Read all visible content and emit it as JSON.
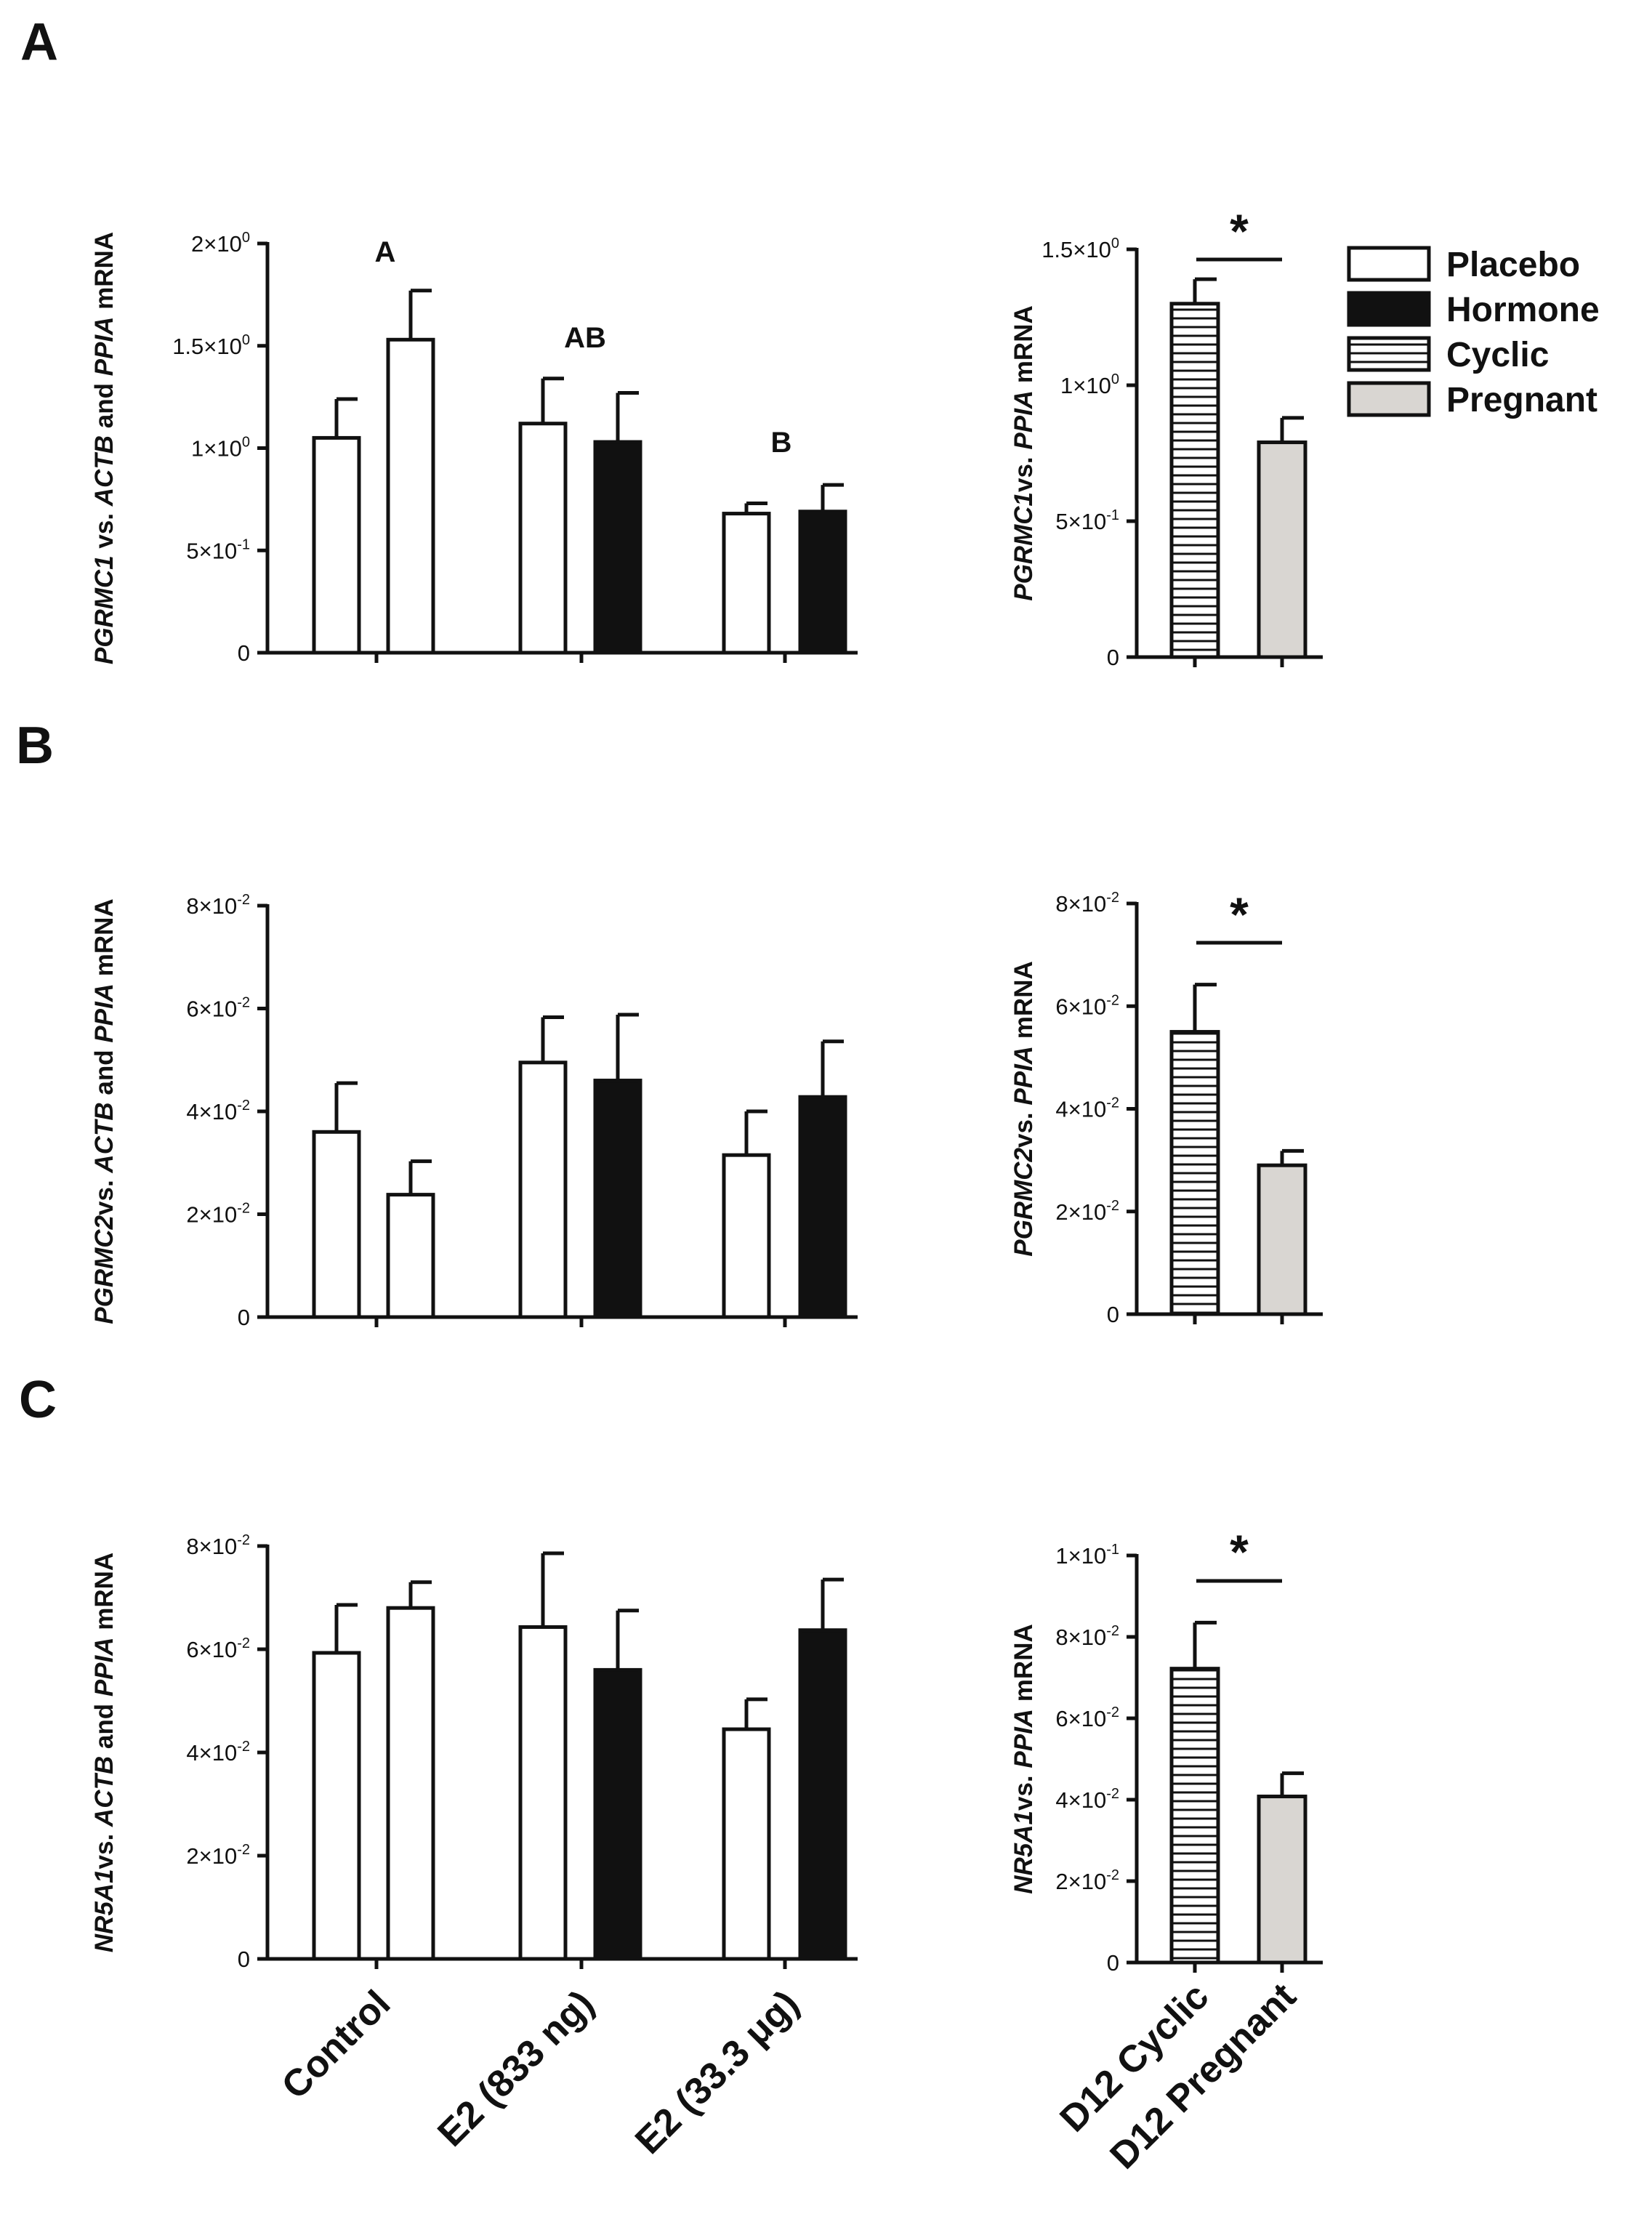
{
  "legend": [
    {
      "label": "Placebo",
      "fill": "#ffffff",
      "pattern": "none"
    },
    {
      "label": "Hormone",
      "fill": "#111111",
      "pattern": "none"
    },
    {
      "label": "Cyclic",
      "fill": "#ffffff",
      "pattern": "horizontal-lines"
    },
    {
      "label": "Pregnant",
      "fill": "#d9d6d2",
      "pattern": "none"
    }
  ],
  "colors": {
    "placebo": "#ffffff",
    "hormone": "#111111",
    "cyclic": "#ffffff",
    "pregnant": "#d9d6d2",
    "ink": "#111111"
  },
  "x_categories_left": [
    "Control",
    "E2 (833 ng)",
    "E2 (33.3 μg)"
  ],
  "x_categories_right": [
    "D12 Cyclic",
    "D12 Pregnant"
  ],
  "chart_data": [
    {
      "id": "A-left",
      "panel": "A",
      "type": "bar",
      "ylabel_parts": [
        [
          "PGRMC1",
          true
        ],
        [
          " vs. ",
          false
        ],
        [
          "ACTB",
          true
        ],
        [
          " and ",
          false
        ],
        [
          "PPIA",
          true
        ],
        [
          " mRNA",
          false
        ]
      ],
      "ylim": [
        0,
        2.0
      ],
      "yticks": [
        {
          "value": 0,
          "label": "0"
        },
        {
          "value": 0.5,
          "label": "5×10",
          "exp": "-1"
        },
        {
          "value": 1.0,
          "label": "1×10",
          "exp": "0"
        },
        {
          "value": 1.5,
          "label": "1.5×10",
          "exp": "0"
        },
        {
          "value": 2.0,
          "label": "2×10",
          "exp": "0"
        }
      ],
      "categories": [
        "Control",
        "E2 (833 ng)",
        "E2 (33.3 μg)"
      ],
      "series": [
        {
          "name": "Placebo",
          "values": [
            1.05,
            1.12,
            0.68
          ],
          "errors": [
            0.19,
            0.22,
            0.05
          ]
        },
        {
          "name": "Hormone",
          "values": [
            1.53,
            1.03,
            0.69
          ],
          "errors": [
            0.24,
            0.24,
            0.13
          ]
        }
      ],
      "control_colors": [
        "placebo",
        "placebo"
      ],
      "annotations": [
        "A",
        "AB",
        "B"
      ]
    },
    {
      "id": "A-right",
      "panel": "A",
      "type": "bar",
      "ylabel_parts": [
        [
          "PGRMC1",
          true
        ],
        [
          "vs. ",
          false
        ],
        [
          "PPIA",
          true
        ],
        [
          " mRNA",
          false
        ]
      ],
      "ylim": [
        0,
        1.5
      ],
      "yticks": [
        {
          "value": 0,
          "label": "0"
        },
        {
          "value": 0.5,
          "label": "5×10",
          "exp": "-1"
        },
        {
          "value": 1.0,
          "label": "1×10",
          "exp": "0"
        },
        {
          "value": 1.5,
          "label": "1.5×10",
          "exp": "0"
        }
      ],
      "categories": [
        "D12 Cyclic",
        "D12 Pregnant"
      ],
      "values": [
        1.3,
        0.79
      ],
      "errors": [
        0.09,
        0.09
      ],
      "significance": "*"
    },
    {
      "id": "B-left",
      "panel": "B",
      "type": "bar",
      "ylabel_parts": [
        [
          "PGRMC2",
          true
        ],
        [
          "vs. ",
          false
        ],
        [
          "ACTB",
          true
        ],
        [
          " and ",
          false
        ],
        [
          "PPIA",
          true
        ],
        [
          " mRNA",
          false
        ]
      ],
      "ylim": [
        0,
        0.08
      ],
      "yticks": [
        {
          "value": 0,
          "label": "0"
        },
        {
          "value": 0.02,
          "label": "2×10",
          "exp": "-2"
        },
        {
          "value": 0.04,
          "label": "4×10",
          "exp": "-2"
        },
        {
          "value": 0.06,
          "label": "6×10",
          "exp": "-2"
        },
        {
          "value": 0.08,
          "label": "8×10",
          "exp": "-2"
        }
      ],
      "categories": [
        "Control",
        "E2 (833 ng)",
        "E2 (33.3 μg)"
      ],
      "series": [
        {
          "name": "Placebo",
          "values": [
            0.036,
            0.0495,
            0.0315
          ],
          "errors": [
            0.0095,
            0.0088,
            0.0085
          ]
        },
        {
          "name": "Hormone",
          "values": [
            0.0238,
            0.046,
            0.0428
          ],
          "errors": [
            0.0065,
            0.0128,
            0.0108
          ]
        }
      ],
      "control_colors": [
        "placebo",
        "placebo"
      ]
    },
    {
      "id": "B-right",
      "panel": "B",
      "type": "bar",
      "ylabel_parts": [
        [
          "PGRMC2",
          true
        ],
        [
          "vs. ",
          false
        ],
        [
          "PPIA",
          true
        ],
        [
          " mRNA",
          false
        ]
      ],
      "ylim": [
        0,
        0.08
      ],
      "yticks": [
        {
          "value": 0,
          "label": "0"
        },
        {
          "value": 0.02,
          "label": "2×10",
          "exp": "-2"
        },
        {
          "value": 0.04,
          "label": "4×10",
          "exp": "-2"
        },
        {
          "value": 0.06,
          "label": "6×10",
          "exp": "-2"
        },
        {
          "value": 0.08,
          "label": "8×10",
          "exp": "-2"
        }
      ],
      "categories": [
        "D12 Cyclic",
        "D12 Pregnant"
      ],
      "values": [
        0.055,
        0.029
      ],
      "errors": [
        0.0092,
        0.0028
      ],
      "significance": "*"
    },
    {
      "id": "C-left",
      "panel": "C",
      "type": "bar",
      "ylabel_parts": [
        [
          "NR5A1",
          true
        ],
        [
          "vs. ",
          false
        ],
        [
          "ACTB",
          true
        ],
        [
          " and ",
          false
        ],
        [
          "PPIA",
          true
        ],
        [
          " mRNA",
          false
        ]
      ],
      "ylim": [
        0,
        0.08
      ],
      "yticks": [
        {
          "value": 0,
          "label": "0"
        },
        {
          "value": 0.02,
          "label": "2×10",
          "exp": "-2"
        },
        {
          "value": 0.04,
          "label": "4×10",
          "exp": "-2"
        },
        {
          "value": 0.06,
          "label": "6×10",
          "exp": "-2"
        },
        {
          "value": 0.08,
          "label": "8×10",
          "exp": "-2"
        }
      ],
      "categories": [
        "Control",
        "E2 (833 ng)",
        "E2 (33.3 μg)"
      ],
      "series": [
        {
          "name": "Placebo",
          "values": [
            0.0593,
            0.0643,
            0.0445
          ],
          "errors": [
            0.0093,
            0.0143,
            0.0058
          ]
        },
        {
          "name": "Hormone",
          "values": [
            0.068,
            0.056,
            0.0637
          ],
          "errors": [
            0.005,
            0.0115,
            0.0098
          ]
        }
      ],
      "control_colors": [
        "placebo",
        "placebo"
      ]
    },
    {
      "id": "C-right",
      "panel": "C",
      "type": "bar",
      "ylabel_parts": [
        [
          "NR5A1",
          true
        ],
        [
          "vs. ",
          false
        ],
        [
          "PPIA",
          true
        ],
        [
          " mRNA",
          false
        ]
      ],
      "ylim": [
        0,
        0.1
      ],
      "yticks": [
        {
          "value": 0,
          "label": "0"
        },
        {
          "value": 0.02,
          "label": "2×10",
          "exp": "-2"
        },
        {
          "value": 0.04,
          "label": "4×10",
          "exp": "-2"
        },
        {
          "value": 0.06,
          "label": "6×10",
          "exp": "-2"
        },
        {
          "value": 0.08,
          "label": "8×10",
          "exp": "-2"
        },
        {
          "value": 0.1,
          "label": "1×10",
          "exp": "-1"
        }
      ],
      "categories": [
        "D12 Cyclic",
        "D12 Pregnant"
      ],
      "values": [
        0.0722,
        0.0408
      ],
      "errors": [
        0.0113,
        0.0057
      ],
      "significance": "*"
    }
  ]
}
